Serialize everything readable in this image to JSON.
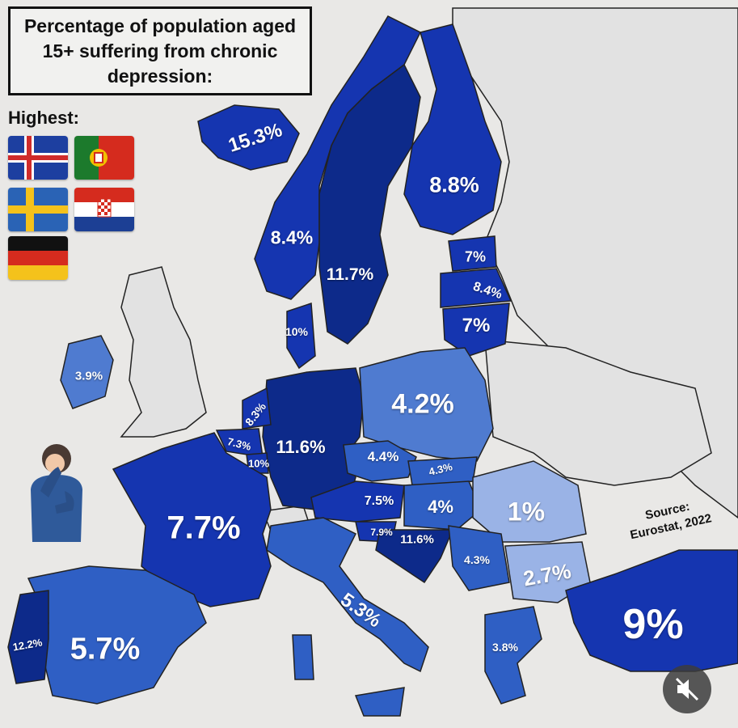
{
  "title": "Percentage of population aged 15+ suffering from chronic depression:",
  "highest_label": "Highest:",
  "highest_flags": [
    "iceland-flag",
    "portugal-flag",
    "sweden-flag",
    "croatia-flag",
    "germany-flag"
  ],
  "source": "Source: Eurostat, 2022",
  "colors": {
    "background": "#e9e8e6",
    "darkest": "#0d2a8a",
    "dark": "#1535b0",
    "mid": "#2f5fc4",
    "light": "#4f7bd0",
    "lightest": "#9ab3e6",
    "no_data": "#e2e2e2"
  },
  "countries": {
    "iceland": "15.3%",
    "norway": "8.4%",
    "sweden": "11.7%",
    "finland": "8.8%",
    "estonia": "7%",
    "latvia": "8.4%",
    "lithuania": "7%",
    "denmark": "10%",
    "ireland": "3.9%",
    "netherlands": "8.3%",
    "belgium": "7.3%",
    "luxembourg": "10%",
    "germany": "11.6%",
    "poland": "4.2%",
    "czechia": "4.4%",
    "slovakia": "4.3%",
    "austria": "7.5%",
    "hungary": "4%",
    "romania": "1%",
    "slovenia": "7.9%",
    "croatia": "11.6%",
    "serbia": "4.3%",
    "bulgaria": "2.7%",
    "france": "7.7%",
    "italy": "5.3%",
    "spain": "5.7%",
    "portugal": "12.2%",
    "greece": "3.8%",
    "turkey": "9%"
  }
}
